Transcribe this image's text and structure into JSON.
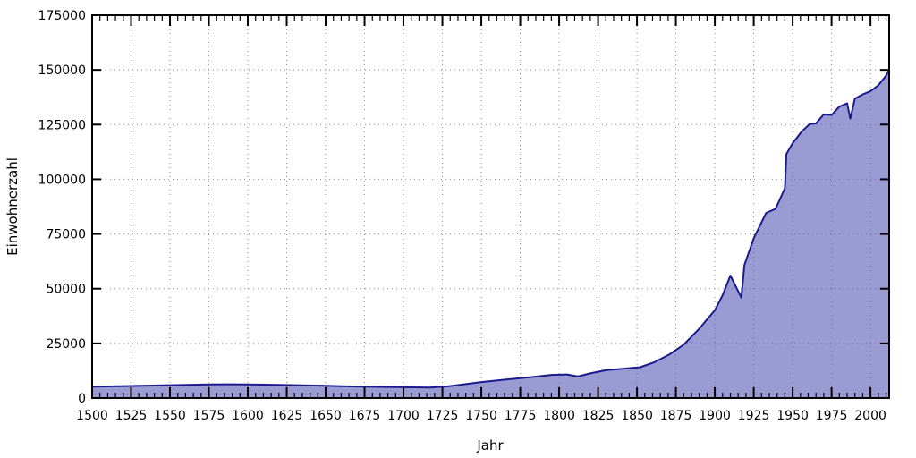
{
  "chart_data": {
    "type": "area",
    "title": "",
    "xlabel": "Jahr",
    "ylabel": "Einwohnerzahl",
    "xlim": [
      1500,
      2012
    ],
    "ylim": [
      0,
      175000
    ],
    "grid": true,
    "legend": "none",
    "x_major_tick_step": 25,
    "x_minor_tick_step": 5,
    "y_major_tick_step": 25000,
    "x_tick_labels": [
      "1500",
      "1525",
      "1550",
      "1575",
      "1600",
      "1625",
      "1650",
      "1675",
      "1700",
      "1725",
      "1750",
      "1775",
      "1800",
      "1825",
      "1850",
      "1875",
      "1900",
      "1925",
      "1950",
      "1975",
      "2000"
    ],
    "y_tick_labels": [
      "0",
      "25000",
      "50000",
      "75000",
      "100000",
      "125000",
      "150000",
      "175000"
    ],
    "series": [
      {
        "name": "Einwohnerzahl",
        "points": [
          [
            1500,
            5200
          ],
          [
            1525,
            5500
          ],
          [
            1550,
            5900
          ],
          [
            1575,
            6200
          ],
          [
            1588,
            6300
          ],
          [
            1600,
            6250
          ],
          [
            1620,
            6000
          ],
          [
            1650,
            5600
          ],
          [
            1675,
            5200
          ],
          [
            1700,
            4950
          ],
          [
            1717,
            4800
          ],
          [
            1728,
            5300
          ],
          [
            1750,
            7300
          ],
          [
            1766,
            8500
          ],
          [
            1784,
            9700
          ],
          [
            1795,
            10600
          ],
          [
            1805,
            10800
          ],
          [
            1812,
            9900
          ],
          [
            1820,
            11300
          ],
          [
            1830,
            12700
          ],
          [
            1840,
            13345
          ],
          [
            1852,
            14100
          ],
          [
            1861,
            16300
          ],
          [
            1871,
            19988
          ],
          [
            1880,
            24417
          ],
          [
            1890,
            31739
          ],
          [
            1900,
            40121
          ],
          [
            1905,
            47000
          ],
          [
            1910,
            56016
          ],
          [
            1917,
            45930
          ],
          [
            1919,
            60831
          ],
          [
            1925,
            73034
          ],
          [
            1933,
            84641
          ],
          [
            1939,
            86467
          ],
          [
            1945,
            95874
          ],
          [
            1946,
            111488
          ],
          [
            1950,
            116488
          ],
          [
            1956,
            121910
          ],
          [
            1961,
            125264
          ],
          [
            1965,
            125507
          ],
          [
            1970,
            129656
          ],
          [
            1975,
            129368
          ],
          [
            1980,
            133227
          ],
          [
            1985,
            134724
          ],
          [
            1987,
            127768
          ],
          [
            1990,
            136796
          ],
          [
            1995,
            138781
          ],
          [
            2000,
            140259
          ],
          [
            2005,
            142933
          ],
          [
            2010,
            147312
          ],
          [
            2012,
            150000
          ]
        ]
      }
    ],
    "colors": {
      "line": "#1a1a8c",
      "fill": "rgba(80,80,180,0.57)",
      "grid": "#8a8a8a",
      "frame": "#000000",
      "background": "#ffffff",
      "text": "#000000"
    }
  }
}
